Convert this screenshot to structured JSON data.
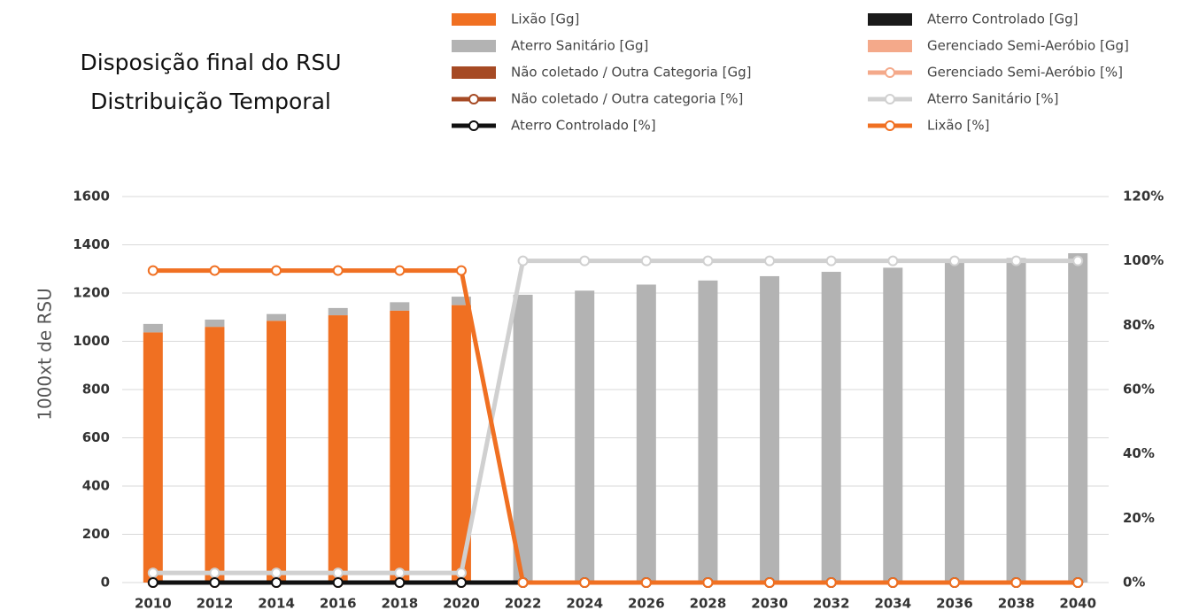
{
  "chart_data": {
    "type": "combo",
    "title": "Disposição final do RSU",
    "subtitle": "Distribuição Temporal",
    "y_label": "1000xt de RSU",
    "categories": [
      "2010",
      "2012",
      "2014",
      "2016",
      "2018",
      "2020",
      "2022",
      "2024",
      "2026",
      "2028",
      "2030",
      "2032",
      "2034",
      "2036",
      "2038",
      "2040"
    ],
    "ylim": [
      0,
      1600
    ],
    "yticks": [
      0,
      200,
      400,
      600,
      800,
      1000,
      1200,
      1400,
      1600
    ],
    "y2lim": [
      0,
      120
    ],
    "y2ticks": [
      {
        "value": 0,
        "label": "0%"
      },
      {
        "value": 20,
        "label": "20%"
      },
      {
        "value": 40,
        "label": "40%"
      },
      {
        "value": 60,
        "label": "60%"
      },
      {
        "value": 80,
        "label": "80%"
      },
      {
        "value": 100,
        "label": "100%"
      },
      {
        "value": 120,
        "label": "120%"
      }
    ],
    "grid": true,
    "series": [
      {
        "name": "Lixão [Gg]",
        "type": "bar",
        "color": "#f07022",
        "values": [
          1037,
          1060,
          1085,
          1108,
          1127,
          1150,
          0,
          0,
          0,
          0,
          0,
          0,
          0,
          0,
          0,
          0
        ]
      },
      {
        "name": "Aterro Controlado [Gg]",
        "type": "bar",
        "color": "#1a1a1a",
        "values": [
          0,
          0,
          0,
          0,
          0,
          0,
          0,
          0,
          0,
          0,
          0,
          0,
          0,
          0,
          0,
          0
        ]
      },
      {
        "name": "Aterro Sanitário [Gg]",
        "type": "bar",
        "color": "#b3b3b3",
        "values": [
          35,
          30,
          28,
          30,
          35,
          35,
          1193,
          1210,
          1235,
          1252,
          1270,
          1288,
          1305,
          1325,
          1345,
          1365
        ]
      },
      {
        "name": "Gerenciado Semi-Aeróbio [Gg]",
        "type": "bar",
        "color": "#f4a98a",
        "values": [
          0,
          0,
          0,
          0,
          0,
          0,
          0,
          0,
          0,
          0,
          0,
          0,
          0,
          0,
          0,
          0
        ]
      },
      {
        "name": "Não coletado / Outra Categoria [Gg]",
        "type": "bar",
        "color": "#a64a24",
        "values": [
          0,
          0,
          0,
          0,
          0,
          0,
          0,
          0,
          0,
          0,
          0,
          0,
          0,
          0,
          0,
          0
        ]
      },
      {
        "name": "Gerenciado Semi-Aeróbio [%]",
        "type": "line",
        "axis": "y2",
        "color": "#f4a98a",
        "values": [
          0,
          0,
          0,
          0,
          0,
          0,
          0,
          0,
          0,
          0,
          0,
          0,
          0,
          0,
          0,
          0
        ]
      },
      {
        "name": "Não coletado / Outra categoria [%]",
        "type": "line",
        "axis": "y2",
        "color": "#a64a24",
        "values": [
          0,
          0,
          0,
          0,
          0,
          0,
          0,
          0,
          0,
          0,
          0,
          0,
          0,
          0,
          0,
          0
        ]
      },
      {
        "name": "Aterro Sanitário [%]",
        "type": "line",
        "axis": "y2",
        "color": "#d0d0d0",
        "values": [
          3,
          3,
          3,
          3,
          3,
          3,
          100,
          100,
          100,
          100,
          100,
          100,
          100,
          100,
          100,
          100
        ]
      },
      {
        "name": "Aterro Controlado [%]",
        "type": "line",
        "axis": "y2",
        "color": "#111111",
        "values": [
          0,
          0,
          0,
          0,
          0,
          0,
          0,
          0,
          0,
          0,
          0,
          0,
          0,
          0,
          0,
          0
        ]
      },
      {
        "name": "Lixão [%]",
        "type": "line",
        "axis": "y2",
        "color": "#f07022",
        "values": [
          97,
          97,
          97,
          97,
          97,
          97,
          0,
          0,
          0,
          0,
          0,
          0,
          0,
          0,
          0,
          0
        ]
      }
    ]
  }
}
